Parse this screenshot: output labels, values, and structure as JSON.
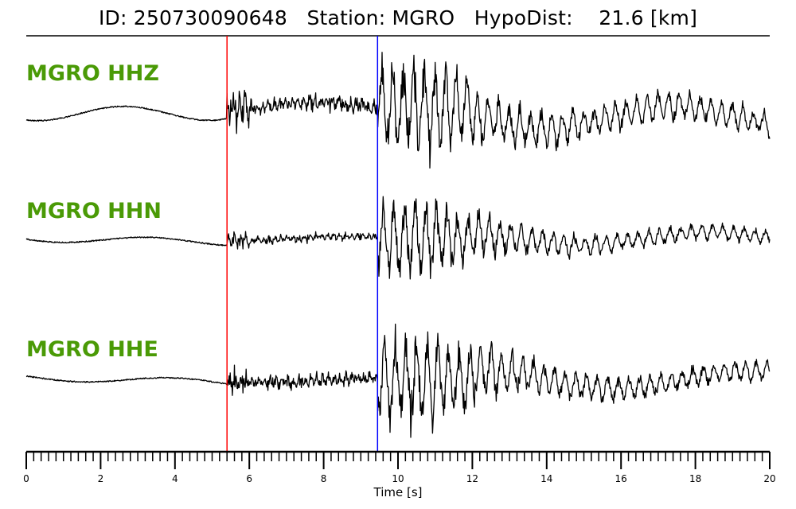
{
  "header": {
    "title": "ID: 250730090648   Station: MGRO   HypoDist:    21.6 [km]"
  },
  "chart_data": {
    "type": "line",
    "title": "ID: 250730090648   Station: MGRO   HypoDist:    21.6 [km]",
    "xlabel": "Time [s]",
    "ylabel": "",
    "xlim": [
      0,
      20
    ],
    "x_ticks": [
      "0",
      "2",
      "4",
      "6",
      "8",
      "10",
      "12",
      "14",
      "16",
      "18",
      "20"
    ],
    "minor_tick_step": 0.2,
    "grid": false,
    "label_color": "#4a9a06",
    "trace_color": "#000000",
    "picks": [
      {
        "phase_color": "#ff0000",
        "time": 5.4
      },
      {
        "phase_color": "#0000ff",
        "time": 9.45
      }
    ],
    "series": [
      {
        "name": "MGRO HHZ"
      },
      {
        "name": "MGRO HHN"
      },
      {
        "name": "MGRO HHE"
      }
    ]
  }
}
